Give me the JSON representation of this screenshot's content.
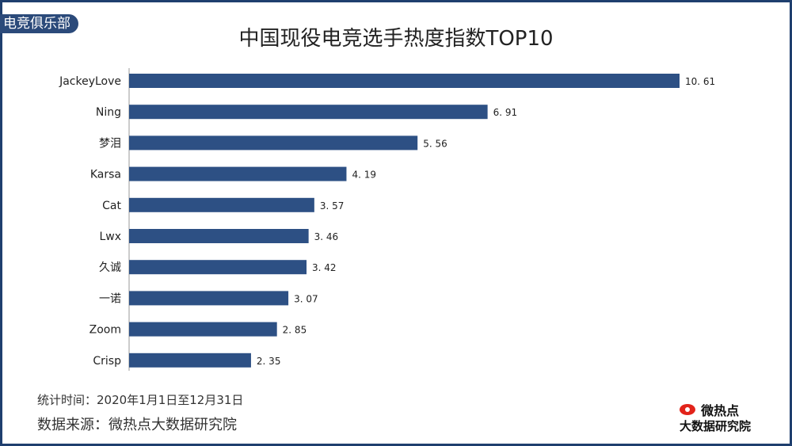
{
  "club_tag": "电竞俱乐部",
  "chart_data": {
    "type": "bar",
    "orientation": "horizontal",
    "title": "中国现役电竞选手热度指数TOP10",
    "categories": [
      "JackeyLove",
      "Ning",
      "梦泪",
      "Karsa",
      "Cat",
      "Lwx",
      "久诚",
      "一诺",
      "Zoom",
      "Crisp"
    ],
    "values": [
      10.61,
      6.91,
      5.56,
      4.19,
      3.57,
      3.46,
      3.42,
      3.07,
      2.85,
      2.35
    ],
    "value_labels": [
      "10. 61",
      "6. 91",
      "5. 56",
      "4. 19",
      "3. 57",
      "3. 46",
      "3. 42",
      "3. 07",
      "2. 85",
      "2. 35"
    ],
    "xlim": [
      0,
      10.61
    ],
    "bar_color": "#2d5084",
    "grid": false,
    "legend": "none"
  },
  "footer": {
    "period": "统计时间：2020年1月1日至12月31日",
    "source": "数据来源：微热点大数据研究院"
  },
  "logo": {
    "name": "微热点",
    "subtitle": "大数据研究院",
    "icon": "eye-icon"
  },
  "colors": {
    "frame": "#1f3f6e",
    "tag_bg": "#2b4a7a"
  }
}
